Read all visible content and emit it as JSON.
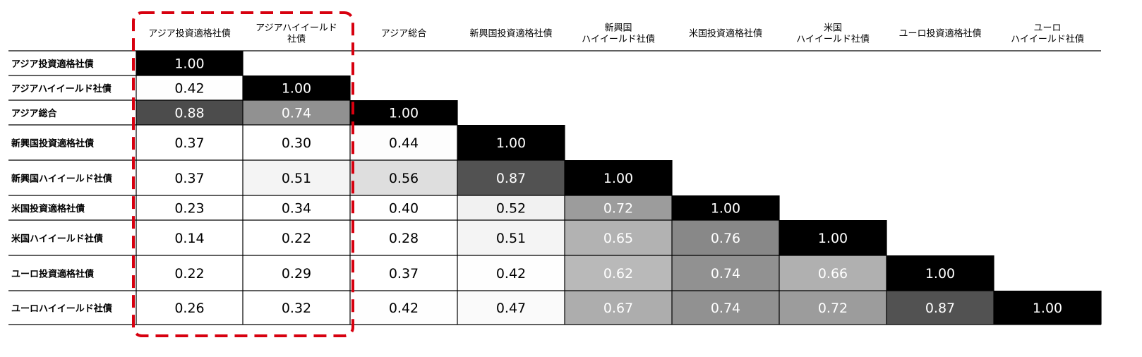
{
  "chart_data": {
    "type": "heatmap",
    "title": "",
    "column_labels": [
      [
        "アジア投資適格社債"
      ],
      [
        "アジアハイイールド",
        "社債"
      ],
      [
        "アジア総合"
      ],
      [
        "新興国投資適格社債"
      ],
      [
        "新興国",
        "ハイイールド社債"
      ],
      [
        "米国投資適格社債"
      ],
      [
        "米国",
        "ハイイールド社債"
      ],
      [
        "ユーロ投資適格社債"
      ],
      [
        "ユーロ",
        "ハイイールド社債"
      ]
    ],
    "row_labels": [
      "アジア投資適格社債",
      "アジアハイイールド社債",
      "アジア総合",
      "新興国投資適格社債",
      "新興国ハイイールド社債",
      "米国投資適格社債",
      "米国ハイイールド社債",
      "ユーロ投資適格社債",
      "ユーロハイイールド社債"
    ],
    "values": [
      [
        "1.00"
      ],
      [
        "0.42",
        "1.00"
      ],
      [
        "0.88",
        "0.74",
        "1.00"
      ],
      [
        "0.37",
        "0.30",
        "0.44",
        "1.00"
      ],
      [
        "0.37",
        "0.51",
        "0.56",
        "0.87",
        "1.00"
      ],
      [
        "0.23",
        "0.34",
        "0.40",
        "0.52",
        "0.72",
        "1.00"
      ],
      [
        "0.14",
        "0.22",
        "0.28",
        "0.51",
        "0.65",
        "0.76",
        "1.00"
      ],
      [
        "0.22",
        "0.29",
        "0.37",
        "0.42",
        "0.62",
        "0.74",
        "0.66",
        "1.00"
      ],
      [
        "0.26",
        "0.32",
        "0.42",
        "0.47",
        "0.67",
        "0.74",
        "0.72",
        "0.87",
        "1.00"
      ]
    ],
    "highlight": {
      "columns": [
        0,
        1
      ],
      "style": "dashed",
      "color": "#d7000f"
    },
    "colors": {
      "grid_line": "#000000",
      "text_dark": "#000000",
      "text_light": "#ffffff"
    }
  }
}
